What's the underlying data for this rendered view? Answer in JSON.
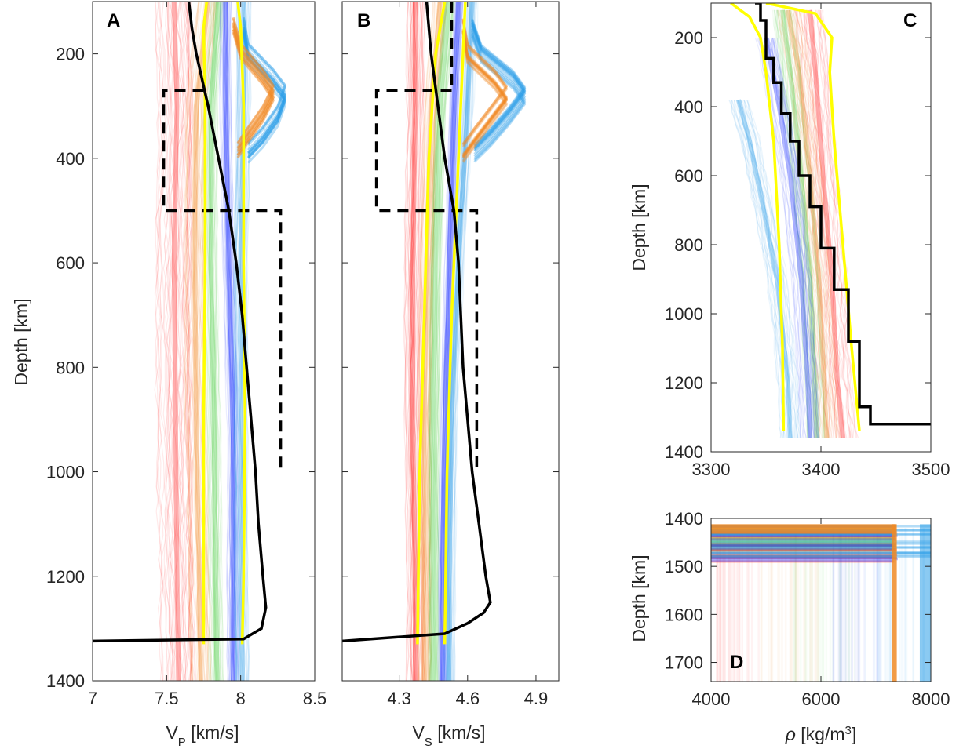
{
  "colors": {
    "red": "#ff1a1a",
    "orange": "#f08a24",
    "green": "#5fd35a",
    "cyan": "#22d0e0",
    "blue": "#2233ff",
    "sky": "#2b9ee8",
    "yellow": "#ffff00",
    "black": "#000000"
  },
  "chart_data": [
    {
      "panel": "A",
      "type": "line",
      "xlabel": "V_P [km/s]",
      "xlabel_main": "V",
      "xlabel_sub": "P",
      "xlabel_rest": " [km/s]",
      "ylabel": "Depth [km]",
      "xlim": [
        7,
        8.5
      ],
      "ylim": [
        1400,
        100
      ],
      "xticks": [
        "7",
        "7.5",
        "8",
        "8.5"
      ],
      "yticks": [
        "200",
        "400",
        "600",
        "800",
        "1000",
        "1200",
        "1400"
      ],
      "ensemble_bands": [
        {
          "color": "red",
          "depth": [
            100,
            300,
            600,
            900,
            1200,
            1400
          ],
          "v": [
            7.55,
            7.57,
            7.55,
            7.56,
            7.57,
            7.58
          ],
          "spread": 0.12
        },
        {
          "color": "orange",
          "depth": [
            100,
            300,
            600,
            900,
            1200,
            1400
          ],
          "v": [
            7.78,
            7.7,
            7.69,
            7.7,
            7.72,
            7.73
          ],
          "spread": 0.07
        },
        {
          "color": "green",
          "depth": [
            100,
            300,
            600,
            900,
            1200,
            1400
          ],
          "v": [
            7.85,
            7.8,
            7.8,
            7.82,
            7.83,
            7.84
          ],
          "spread": 0.05
        },
        {
          "color": "blue",
          "depth": [
            100,
            300,
            600,
            900,
            1200,
            1400
          ],
          "v": [
            7.9,
            7.9,
            7.92,
            7.95,
            7.95,
            7.95
          ],
          "spread": 0.04
        },
        {
          "color": "sky",
          "depth": [
            100,
            300,
            600,
            900,
            1200,
            1400
          ],
          "v": [
            8.02,
            8.02,
            8.0,
            8.0,
            8.0,
            8.01
          ],
          "spread": 0.05
        }
      ],
      "bumps": [
        {
          "color": "sky",
          "depth": [
            150,
            200,
            250,
            280,
            320,
            360,
            390
          ],
          "v": [
            8.02,
            8.05,
            8.22,
            8.3,
            8.25,
            8.15,
            8.05
          ]
        },
        {
          "color": "orange",
          "depth": [
            150,
            200,
            250,
            280,
            320,
            360,
            390
          ],
          "v": [
            7.95,
            8.0,
            8.15,
            8.22,
            8.15,
            8.05,
            7.98
          ]
        }
      ],
      "black_profile": {
        "depth": [
          100,
          150,
          200,
          300,
          400,
          500,
          600,
          700,
          800,
          900,
          1000,
          1100,
          1200,
          1260,
          1300,
          1320,
          1324
        ],
        "v": [
          7.65,
          7.67,
          7.7,
          7.78,
          7.85,
          7.92,
          7.97,
          8.01,
          8.04,
          8.07,
          8.1,
          8.12,
          8.15,
          8.17,
          8.14,
          8.02,
          7.0
        ]
      },
      "dashed_box": {
        "depth": [
          270,
          270,
          500,
          500,
          1000
        ],
        "v": [
          7.75,
          7.48,
          7.48,
          8.27,
          8.27
        ]
      },
      "yellow_lines": [
        {
          "depth": [
            100,
            150,
            300,
            600,
            900,
            1200,
            1330
          ],
          "v": [
            7.77,
            7.75,
            7.76,
            7.76,
            7.75,
            7.75,
            7.75
          ]
        },
        {
          "depth": [
            100,
            150,
            300,
            600,
            900,
            1200,
            1330
          ],
          "v": [
            7.98,
            8.0,
            8.02,
            8.02,
            8.03,
            8.02,
            8.01
          ]
        }
      ]
    },
    {
      "panel": "B",
      "type": "line",
      "xlabel": "V_S [km/s]",
      "xlabel_main": "V",
      "xlabel_sub": "S",
      "xlabel_rest": " [km/s]",
      "xlim": [
        4.05,
        5.0
      ],
      "ylim": [
        1400,
        100
      ],
      "xticks": [
        "4.3",
        "4.6",
        "4.9"
      ],
      "xtick_values": [
        4.3,
        4.6,
        4.9
      ],
      "ensemble_bands": [
        {
          "color": "red",
          "depth": [
            100,
            300,
            600,
            900,
            1200,
            1400
          ],
          "v": [
            4.37,
            4.37,
            4.36,
            4.36,
            4.37,
            4.37
          ],
          "spread": 0.04
        },
        {
          "color": "orange",
          "depth": [
            100,
            300,
            600,
            900,
            1200,
            1400
          ],
          "v": [
            4.48,
            4.44,
            4.42,
            4.41,
            4.41,
            4.41
          ],
          "spread": 0.03
        },
        {
          "color": "green",
          "depth": [
            100,
            300,
            600,
            900,
            1200,
            1400
          ],
          "v": [
            4.52,
            4.48,
            4.46,
            4.45,
            4.45,
            4.45
          ],
          "spread": 0.025
        },
        {
          "color": "blue",
          "depth": [
            100,
            300,
            600,
            900,
            1200,
            1400
          ],
          "v": [
            4.56,
            4.54,
            4.52,
            4.5,
            4.49,
            4.49
          ],
          "spread": 0.02
        },
        {
          "color": "sky",
          "depth": [
            100,
            300,
            600,
            900,
            1200,
            1400
          ],
          "v": [
            4.62,
            4.6,
            4.56,
            4.53,
            4.52,
            4.52
          ],
          "spread": 0.025
        }
      ],
      "bumps": [
        {
          "color": "sky",
          "depth": [
            150,
            200,
            250,
            280,
            320,
            360,
            390
          ],
          "v": [
            4.62,
            4.66,
            4.8,
            4.85,
            4.78,
            4.7,
            4.63
          ]
        },
        {
          "color": "orange",
          "depth": [
            150,
            200,
            250,
            280,
            320,
            360,
            390
          ],
          "v": [
            4.58,
            4.6,
            4.72,
            4.77,
            4.7,
            4.63,
            4.58
          ]
        }
      ],
      "black_profile": {
        "depth": [
          100,
          200,
          300,
          400,
          500,
          600,
          700,
          800,
          900,
          1000,
          1100,
          1200,
          1250,
          1270,
          1290,
          1310,
          1324
        ],
        "v": [
          4.42,
          4.44,
          4.47,
          4.5,
          4.54,
          4.56,
          4.57,
          4.58,
          4.6,
          4.62,
          4.65,
          4.68,
          4.7,
          4.67,
          4.6,
          4.5,
          4.05
        ]
      },
      "dashed_box": {
        "depth": [
          270,
          270,
          500,
          500,
          1000
        ],
        "v": [
          4.53,
          4.2,
          4.2,
          4.64,
          4.64
        ]
      },
      "dashed_top": {
        "depth": [
          100,
          270
        ],
        "v": [
          4.53,
          4.53
        ]
      },
      "yellow_lines": [
        {
          "depth": [
            100,
            200,
            400,
            700,
            1000,
            1330
          ],
          "v": [
            4.5,
            4.46,
            4.43,
            4.41,
            4.39,
            4.38
          ]
        },
        {
          "depth": [
            100,
            200,
            400,
            700,
            1000,
            1330
          ],
          "v": [
            4.59,
            4.58,
            4.56,
            4.53,
            4.51,
            4.5
          ]
        }
      ]
    },
    {
      "panel": "C",
      "type": "line",
      "xlabel": "",
      "ylabel": "Depth [km]",
      "xlim": [
        3300,
        3500
      ],
      "ylim": [
        1400,
        100
      ],
      "xticks": [
        "3300",
        "3400",
        "3500"
      ],
      "yticks": [
        "200",
        "400",
        "600",
        "800",
        "1000",
        "1200",
        "1400"
      ],
      "ensemble_bands": [
        {
          "color": "red",
          "depth": [
            120,
            300,
            600,
            900,
            1200,
            1360
          ],
          "v": [
            3390,
            3395,
            3402,
            3410,
            3415,
            3420
          ],
          "spread": 14
        },
        {
          "color": "orange",
          "depth": [
            120,
            300,
            600,
            900,
            1200,
            1360
          ],
          "v": [
            3370,
            3380,
            3390,
            3398,
            3403,
            3405
          ],
          "spread": 12
        },
        {
          "color": "green",
          "depth": [
            120,
            300,
            600,
            900,
            1200,
            1360
          ],
          "v": [
            3365,
            3372,
            3382,
            3390,
            3394,
            3396
          ],
          "spread": 10
        },
        {
          "color": "blue",
          "depth": [
            200,
            400,
            600,
            900,
            1200,
            1360
          ],
          "v": [
            3350,
            3362,
            3372,
            3382,
            3388,
            3390
          ],
          "spread": 9
        },
        {
          "color": "sky",
          "depth": [
            380,
            500,
            700,
            900,
            1200,
            1360
          ],
          "v": [
            3325,
            3335,
            3348,
            3360,
            3370,
            3372
          ],
          "spread": 10
        }
      ],
      "black_profile": {
        "depth": [
          100,
          100,
          150,
          150,
          200,
          260,
          260,
          330,
          330,
          420,
          420,
          500,
          500,
          600,
          600,
          690,
          690,
          810,
          810,
          930,
          930,
          1080,
          1080,
          1270,
          1270,
          1320,
          1320
        ],
        "v": [
          3340,
          3345,
          3345,
          3350,
          3350,
          3350,
          3357,
          3357,
          3364,
          3364,
          3372,
          3372,
          3380,
          3380,
          3390,
          3390,
          3400,
          3400,
          3412,
          3412,
          3425,
          3425,
          3435,
          3435,
          3445,
          3445,
          3500
        ]
      },
      "yellow_lines": [
        {
          "depth": [
            100,
            140,
            200,
            300,
            500,
            800,
            1100,
            1340
          ],
          "v": [
            3318,
            3335,
            3345,
            3350,
            3357,
            3362,
            3365,
            3366
          ]
        },
        {
          "depth": [
            100,
            130,
            200,
            300,
            500,
            800,
            1100,
            1340
          ],
          "v": [
            3350,
            3395,
            3410,
            3408,
            3412,
            3420,
            3428,
            3435
          ]
        }
      ]
    },
    {
      "panel": "D",
      "type": "line",
      "xlabel": "ρ [kg/m3]",
      "xlabel_main": "ρ",
      "xlabel_rest": " [kg/m",
      "xlabel_sup": "3",
      "xlabel_close": "]",
      "ylabel": "Depth [km]",
      "xlim": [
        4000,
        8000
      ],
      "ylim": [
        1740,
        1400
      ],
      "xticks": [
        "4000",
        "6000",
        "8000"
      ],
      "yticks": [
        "1400",
        "1500",
        "1600",
        "1700"
      ],
      "jump_colors": [
        "red",
        "orange",
        "green",
        "blue",
        "sky"
      ]
    }
  ]
}
